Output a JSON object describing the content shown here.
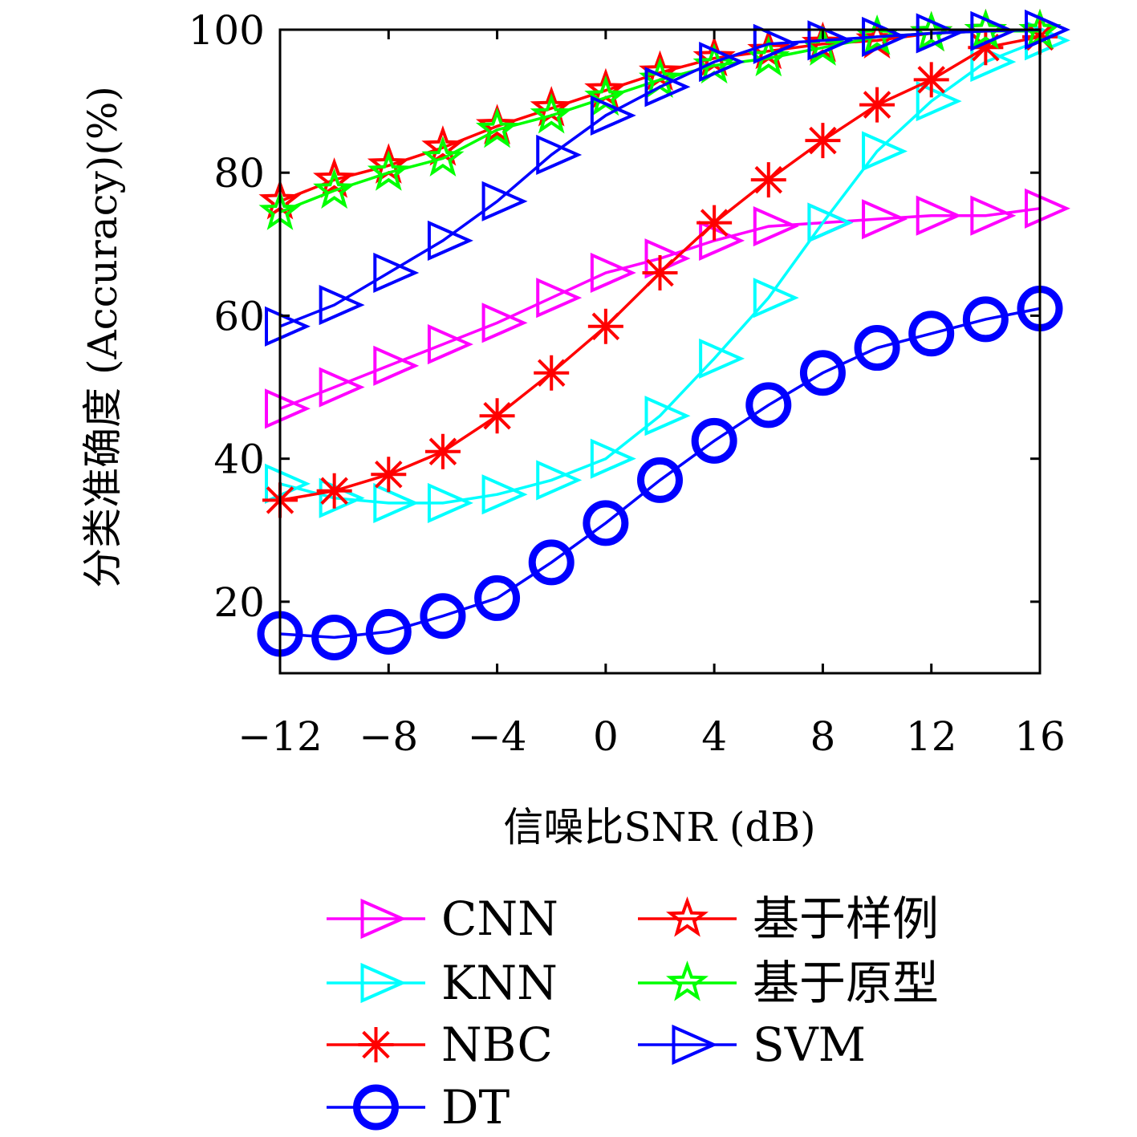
{
  "chart_data": {
    "type": "line",
    "title": "",
    "xlabel": "信噪比SNR (dB)",
    "ylabel": "分类准确度 (Accuracy)(%)",
    "xlim": [
      -12,
      16
    ],
    "ylim": [
      10,
      100
    ],
    "x_ticks": [
      "−12",
      "−8",
      "−4",
      "0",
      "4",
      "8",
      "12",
      "16"
    ],
    "x_tick_values": [
      -12,
      -8,
      -4,
      0,
      4,
      8,
      12,
      16
    ],
    "y_ticks": [
      "20",
      "40",
      "60",
      "80",
      "100"
    ],
    "y_tick_values": [
      20,
      40,
      60,
      80,
      100
    ],
    "grid": false,
    "legend_position": "bottom",
    "x": [
      -12,
      -10,
      -8,
      -6,
      -4,
      -2,
      0,
      2,
      4,
      6,
      8,
      10,
      12,
      14,
      16
    ],
    "series": [
      {
        "name": "CNN",
        "color": "#ff00ff",
        "marker": "triangle-right",
        "values": [
          47,
          50,
          53,
          56,
          59,
          62.5,
          66,
          68,
          70.5,
          72.5,
          73,
          73.5,
          74,
          74,
          75
        ]
      },
      {
        "name": "KNN",
        "color": "#00ffff",
        "marker": "triangle-right",
        "values": [
          36.5,
          34.5,
          33.8,
          33.8,
          35,
          37,
          40,
          46,
          54,
          62.5,
          73,
          83,
          90,
          95.5,
          98.5
        ]
      },
      {
        "name": "NBC",
        "color": "#ff0000",
        "marker": "asterisk",
        "values": [
          34.2,
          35.5,
          37.8,
          41,
          46,
          52,
          58.5,
          66,
          73,
          79,
          84.5,
          89.5,
          93,
          97.5,
          99
        ]
      },
      {
        "name": "DT",
        "color": "#0000ff",
        "marker": "circle",
        "values": [
          15.5,
          15,
          15.8,
          18,
          20.5,
          25.5,
          31,
          37,
          42.5,
          47.5,
          52,
          55.5,
          57.5,
          59.5,
          61
        ]
      },
      {
        "name": "基于样例",
        "color": "#ff0000",
        "marker": "star",
        "values": [
          76,
          79,
          81,
          83.5,
          86.5,
          89,
          91.5,
          94,
          96,
          97,
          98,
          98.5,
          99.5,
          99.8,
          99.8
        ]
      },
      {
        "name": "基于原型",
        "color": "#00ff00",
        "marker": "star",
        "values": [
          74.5,
          77.5,
          80,
          82,
          86,
          88,
          90.5,
          93,
          95,
          96,
          97.5,
          99,
          99.5,
          99.8,
          99.8
        ]
      },
      {
        "name": "SVM",
        "color": "#0000ff",
        "marker": "triangle-right",
        "values": [
          58.5,
          61.5,
          66,
          70.5,
          76,
          82.5,
          88,
          92,
          95.5,
          98,
          98.5,
          99,
          99.5,
          99.8,
          100
        ]
      }
    ]
  }
}
